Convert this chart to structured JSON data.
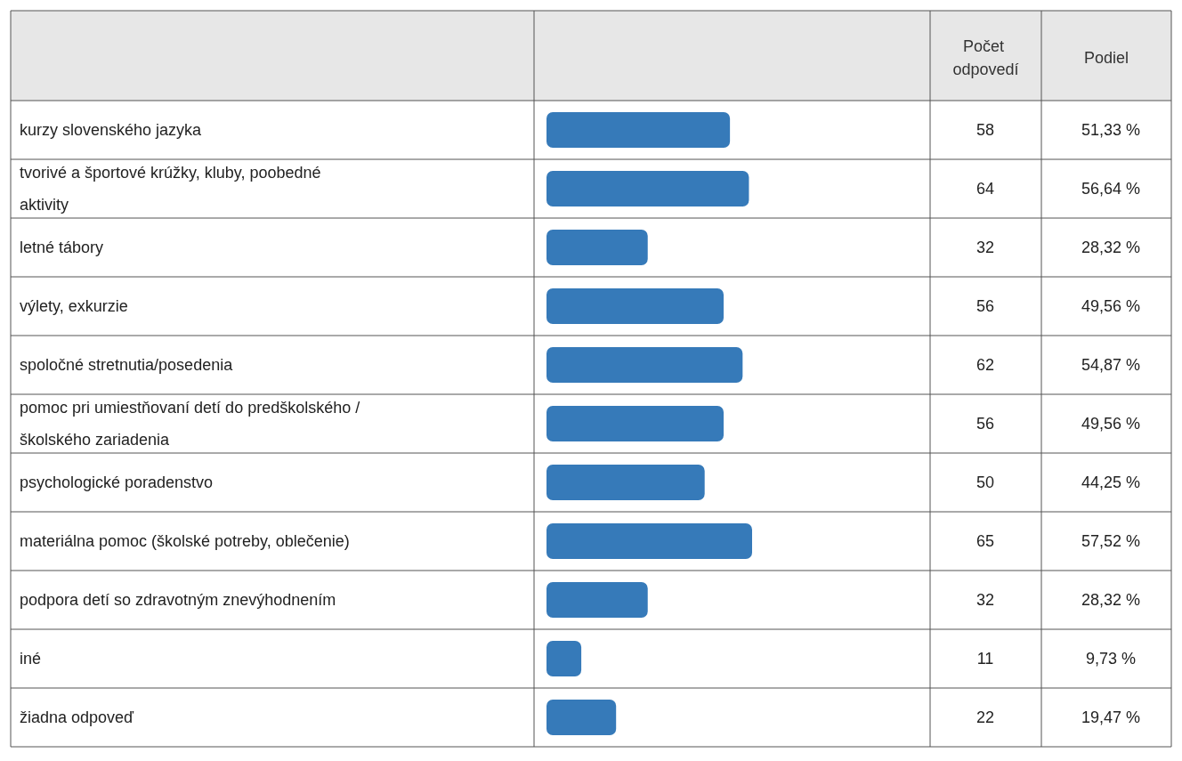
{
  "chart_data": {
    "type": "bar",
    "orientation": "horizontal",
    "categories": [
      "kurzy slovenského jazyka",
      "tvorivé a športové krúžky, kluby, poobedné aktivity",
      "letné tábory",
      "výlety, exkurzie",
      "spoločné stretnutia/posedenia",
      "pomoc pri umiestňovaní detí do predškolského /školského zariadenia",
      "psychologické poradenstvo",
      "materiálna pomoc (školské potreby, oblečenie)",
      "podpora detí so zdravotným znevýhodnením",
      "iné",
      "žiadna odpoveď"
    ],
    "values": [
      58,
      64,
      32,
      56,
      62,
      56,
      50,
      65,
      32,
      11,
      22
    ],
    "color": "#367ab9",
    "data_labels": true,
    "annotations": [
      "Počet odpovedí",
      "Podiel",
      "51,33 %",
      "56,64 %",
      "28,32 %",
      "49,56 %",
      "54,87 %",
      "49,56 %",
      "44,25 %",
      "57,52 %",
      "28,32 %",
      "9,73 %",
      "19,47 %"
    ]
  }
}
